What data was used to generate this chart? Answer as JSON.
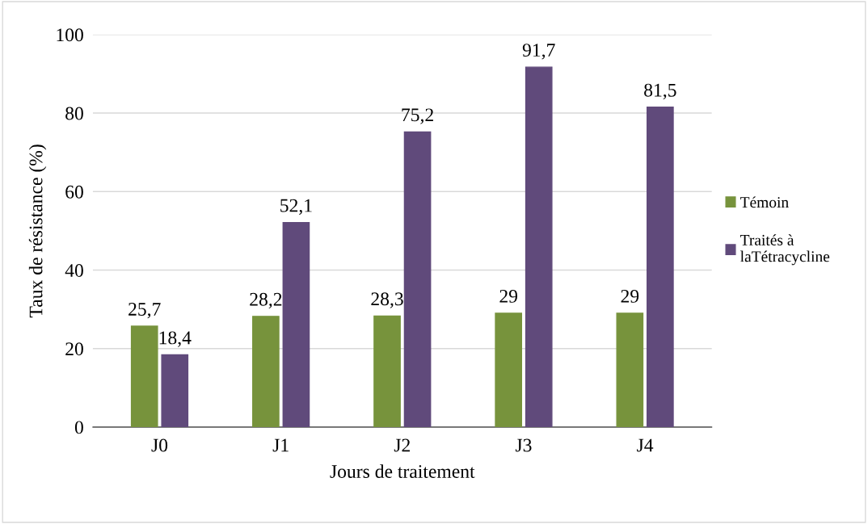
{
  "chart_data": {
    "type": "bar",
    "xlabel": "Jours de traitement",
    "ylabel": "Taux de résistance (%)",
    "categories": [
      "J0",
      "J1",
      "J2",
      "J3",
      "J4"
    ],
    "series": [
      {
        "name": "Témoin",
        "color": "#77933c",
        "values": [
          25.7,
          28.2,
          28.3,
          29,
          29
        ],
        "value_labels": [
          "25,7",
          "28,2",
          "28,3",
          "29",
          "29"
        ]
      },
      {
        "name": "Traités à\nlaTétracycline",
        "color": "#604a7b",
        "values": [
          18.4,
          52.1,
          75.2,
          91.7,
          81.5
        ],
        "value_labels": [
          "18,4",
          "52,1",
          "75,2",
          "91,7",
          "81,5"
        ]
      }
    ],
    "ylim": [
      0,
      100
    ],
    "yticks": [
      0,
      20,
      40,
      60,
      80,
      100
    ],
    "grid": "y",
    "legend": "right"
  }
}
